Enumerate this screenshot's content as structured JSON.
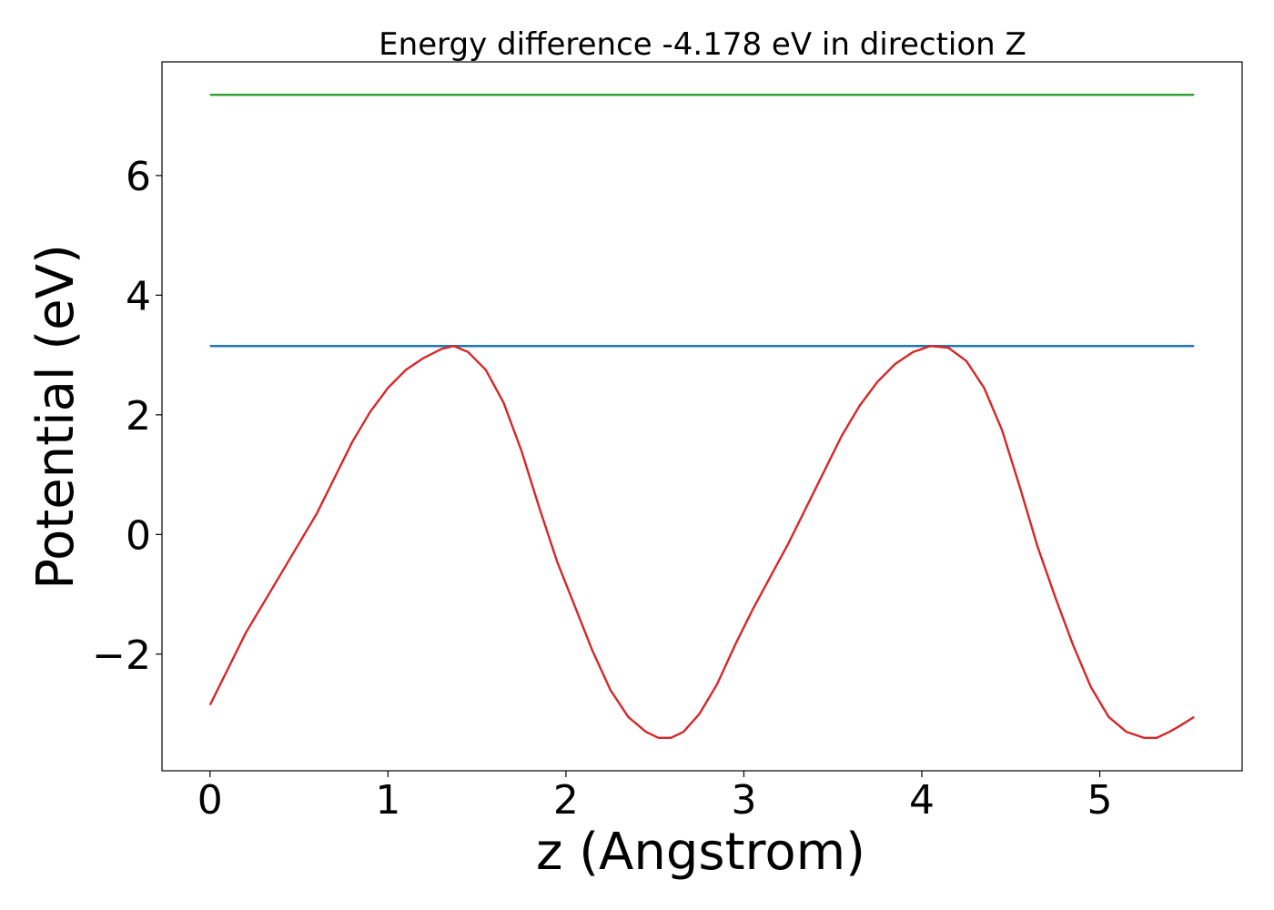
{
  "chart_data": {
    "type": "line",
    "title": "Energy difference -4.178 eV in direction Z",
    "xlabel": "z (Angstrom)",
    "ylabel": "Potential (eV)",
    "xlim": [
      -0.27,
      5.8
    ],
    "ylim": [
      -3.95,
      7.9
    ],
    "x_ticks": [
      0,
      1,
      2,
      3,
      4,
      5
    ],
    "x_tick_labels": [
      "0",
      "1",
      "2",
      "3",
      "4",
      "5"
    ],
    "y_ticks": [
      -2,
      0,
      2,
      4,
      6
    ],
    "y_tick_labels": [
      "−2",
      "0",
      "2",
      "4",
      "6"
    ],
    "grid": false,
    "legend": "none",
    "series": [
      {
        "color": "#2ca02c",
        "x": [
          0,
          5.53
        ],
        "y": [
          7.35,
          7.35
        ]
      },
      {
        "color": "#1f77b4",
        "x": [
          0,
          5.53
        ],
        "y": [
          3.15,
          3.15
        ]
      },
      {
        "color": "#d62728",
        "x": [
          0,
          0.1,
          0.2,
          0.3,
          0.4,
          0.5,
          0.6,
          0.7,
          0.8,
          0.9,
          1.0,
          1.1,
          1.2,
          1.3,
          1.37,
          1.45,
          1.55,
          1.65,
          1.75,
          1.85,
          1.95,
          2.05,
          2.15,
          2.25,
          2.35,
          2.45,
          2.52,
          2.59,
          2.66,
          2.75,
          2.85,
          2.95,
          3.05,
          3.15,
          3.25,
          3.35,
          3.45,
          3.55,
          3.65,
          3.75,
          3.85,
          3.95,
          4.05,
          4.15,
          4.25,
          4.35,
          4.45,
          4.55,
          4.65,
          4.75,
          4.85,
          4.95,
          5.05,
          5.15,
          5.25,
          5.32,
          5.39,
          5.45,
          5.53
        ],
        "y": [
          -2.85,
          -2.25,
          -1.65,
          -1.15,
          -0.65,
          -0.15,
          0.35,
          0.95,
          1.55,
          2.05,
          2.45,
          2.75,
          2.95,
          3.1,
          3.15,
          3.05,
          2.75,
          2.2,
          1.4,
          0.45,
          -0.45,
          -1.2,
          -1.95,
          -2.6,
          -3.05,
          -3.3,
          -3.4,
          -3.4,
          -3.3,
          -3.0,
          -2.5,
          -1.85,
          -1.25,
          -0.7,
          -0.15,
          0.45,
          1.05,
          1.65,
          2.15,
          2.55,
          2.85,
          3.05,
          3.15,
          3.12,
          2.9,
          2.45,
          1.75,
          0.8,
          -0.2,
          -1.05,
          -1.85,
          -2.55,
          -3.05,
          -3.3,
          -3.4,
          -3.4,
          -3.3,
          -3.2,
          -3.05
        ]
      }
    ]
  }
}
